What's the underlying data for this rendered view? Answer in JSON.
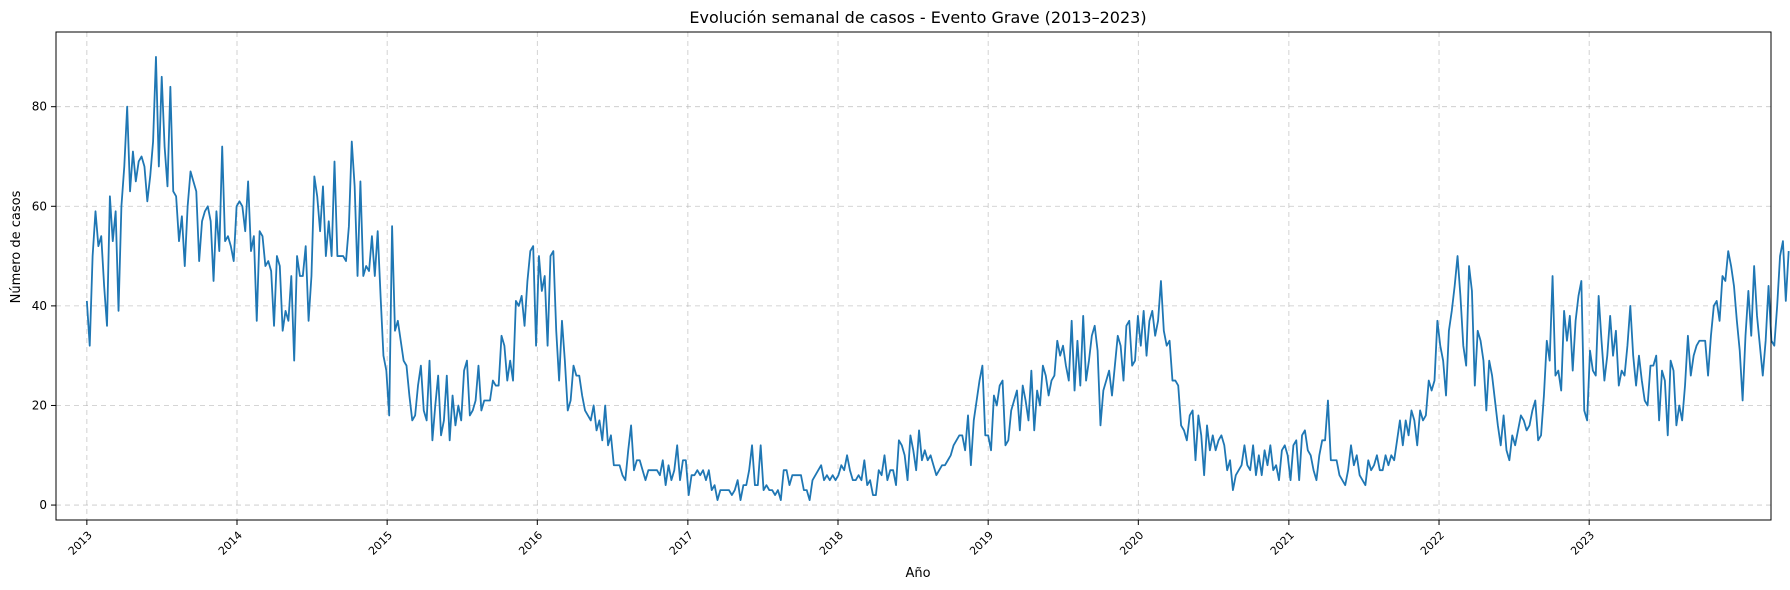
{
  "chart_data": {
    "type": "line",
    "title": "Evolución semanal de casos - Evento Grave (2013–2023)",
    "xlabel": "Año",
    "ylabel": "Número de casos",
    "x_ticks": [
      "2013",
      "2014",
      "2015",
      "2016",
      "2017",
      "2018",
      "2019",
      "2020",
      "2021",
      "2022",
      "2023"
    ],
    "xlim": [
      "2012-10-18",
      "2024-03-18"
    ],
    "ylim": [
      -3,
      95
    ],
    "y_ticks": [
      0,
      20,
      40,
      60,
      80
    ],
    "grid": true,
    "color": "#1f77b4",
    "series": [
      {
        "x_start": "2013-01-01",
        "x_step_days": 7,
        "values": [
          41,
          32,
          50,
          59,
          52,
          54,
          44,
          36,
          62,
          53,
          59,
          39,
          60,
          68,
          80,
          63,
          71,
          65,
          69,
          70,
          68,
          61,
          66,
          73,
          90,
          68,
          86,
          72,
          64,
          84,
          63,
          62,
          53,
          58,
          48,
          60,
          67,
          65,
          63,
          49,
          57,
          59,
          60,
          57,
          45,
          59,
          51,
          72,
          53,
          54,
          52,
          49,
          60,
          61,
          60,
          55,
          65,
          51,
          54,
          37,
          55,
          54,
          48,
          49,
          47,
          36,
          50,
          48,
          35,
          39,
          37,
          46,
          29,
          50,
          46,
          46,
          52,
          37,
          46,
          66,
          62,
          55,
          64,
          50,
          57,
          50,
          69,
          50,
          50,
          50,
          49,
          56,
          73,
          64,
          46,
          65,
          46,
          48,
          47,
          54,
          46,
          55,
          42,
          30,
          27,
          18,
          56,
          35,
          37,
          33,
          29,
          28,
          22,
          17,
          18,
          24,
          28,
          19,
          17,
          29,
          13,
          20,
          26,
          14,
          17,
          26,
          13,
          22,
          16,
          20,
          17,
          27,
          29,
          18,
          19,
          21,
          28,
          19,
          21,
          21,
          21,
          25,
          24,
          24,
          34,
          32,
          25,
          29,
          25,
          41,
          40,
          42,
          36,
          45,
          51,
          52,
          32,
          50,
          43,
          46,
          32,
          50,
          51,
          35,
          25,
          37,
          29,
          19,
          21,
          28,
          26,
          26,
          22,
          19,
          18,
          17,
          20,
          15,
          17,
          13,
          20,
          12,
          14,
          8,
          8,
          8,
          6,
          5,
          11,
          16,
          7,
          9,
          9,
          7,
          5,
          7,
          7,
          7,
          7,
          6,
          9,
          4,
          8,
          5,
          7,
          12,
          5,
          9,
          9,
          2,
          6,
          6,
          7,
          6,
          7,
          5,
          7,
          3,
          4,
          1,
          3,
          3,
          3,
          3,
          2,
          3,
          5,
          1,
          4,
          4,
          7,
          12,
          4,
          4,
          12,
          3,
          4,
          3,
          3,
          2,
          3,
          1,
          7,
          7,
          4,
          6,
          6,
          6,
          6,
          3,
          3,
          1,
          5,
          6,
          7,
          8,
          5,
          6,
          5,
          6,
          5,
          6,
          8,
          7,
          10,
          7,
          5,
          5,
          6,
          5,
          9,
          4,
          5,
          2,
          2,
          7,
          6,
          10,
          5,
          7,
          7,
          4,
          13,
          12,
          10,
          5,
          14,
          11,
          7,
          15,
          9,
          11,
          9,
          10,
          8,
          6,
          7,
          8,
          8,
          9,
          10,
          12,
          13,
          14,
          14,
          11,
          18,
          8,
          17,
          21,
          25,
          28,
          14,
          14,
          11,
          22,
          20,
          24,
          25,
          12,
          13,
          19,
          21,
          23,
          15,
          24,
          21,
          17,
          27,
          15,
          23,
          20,
          28,
          26,
          22,
          25,
          26,
          33,
          30,
          32,
          28,
          25,
          37,
          23,
          33,
          24,
          38,
          25,
          29,
          34,
          36,
          31,
          16,
          23,
          25,
          27,
          22,
          28,
          34,
          32,
          25,
          36,
          37,
          28,
          29,
          38,
          32,
          39,
          30,
          37,
          39,
          34,
          37,
          45,
          35,
          32,
          33,
          25,
          25,
          24,
          16,
          15,
          13,
          18,
          19,
          9,
          18,
          14,
          6,
          16,
          11,
          14,
          11,
          13,
          14,
          12,
          7,
          9,
          3,
          6,
          7,
          8,
          12,
          8,
          7,
          12,
          6,
          10,
          6,
          11,
          8,
          12,
          7,
          8,
          5,
          11,
          12,
          10,
          5,
          12,
          13,
          5,
          14,
          15,
          11,
          10,
          7,
          5,
          10,
          13,
          13,
          21,
          9,
          9,
          9,
          6,
          5,
          4,
          7,
          12,
          8,
          10,
          6,
          5,
          4,
          9,
          7,
          8,
          10,
          7,
          7,
          10,
          8,
          10,
          9,
          13,
          17,
          12,
          17,
          14,
          19,
          17,
          12,
          19,
          17,
          18,
          25,
          23,
          25,
          37,
          32,
          29,
          22,
          35,
          39,
          44,
          50,
          42,
          32,
          28,
          48,
          43,
          24,
          35,
          33,
          29,
          19,
          29,
          26,
          21,
          16,
          12,
          18,
          11,
          9,
          14,
          12,
          15,
          18,
          17,
          15,
          16,
          19,
          21,
          13,
          14,
          22,
          33,
          29,
          46,
          26,
          27,
          23,
          39,
          33,
          38,
          27,
          37,
          42,
          45,
          19,
          17,
          31,
          27,
          26,
          42,
          33,
          25,
          30,
          38,
          30,
          35,
          24,
          27,
          26,
          32,
          40,
          30,
          24,
          30,
          25,
          21,
          20,
          28,
          28,
          30,
          17,
          27,
          25,
          14,
          29,
          27,
          16,
          20,
          17,
          24,
          34,
          26,
          30,
          32,
          33,
          33,
          33,
          26,
          34,
          40,
          41,
          37,
          46,
          45,
          51,
          48,
          44,
          37,
          31,
          21,
          34,
          43,
          34,
          48,
          38,
          32,
          26,
          33,
          44,
          33,
          32,
          40,
          50,
          53,
          41,
          51
        ]
      }
    ]
  }
}
